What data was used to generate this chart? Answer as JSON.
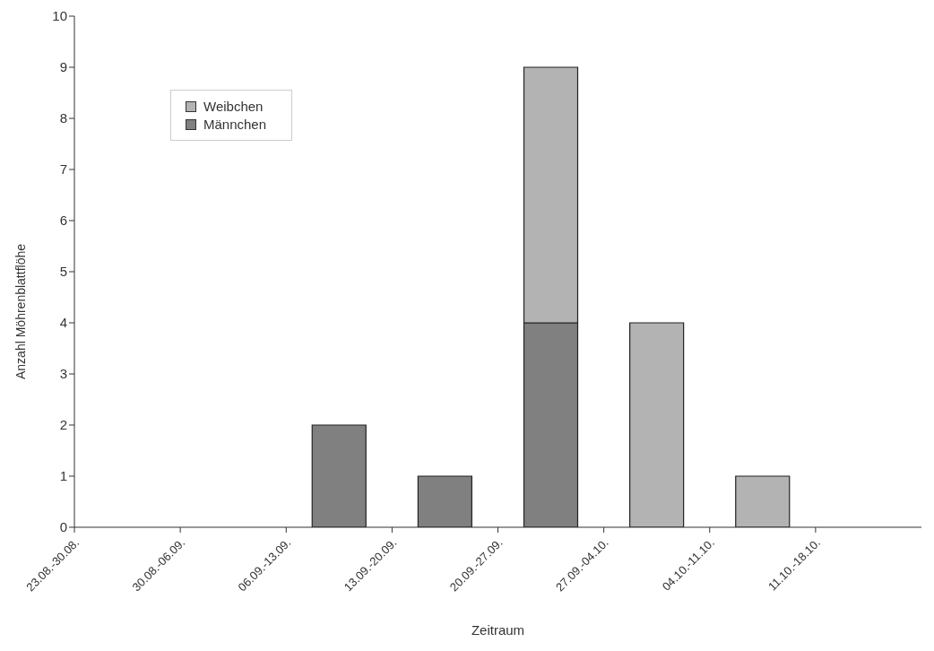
{
  "chart_data": {
    "type": "bar",
    "stacked": true,
    "xlabel": "Zeitraum",
    "ylabel": "Anzahl Möhrenblattflöhe",
    "categories": [
      "23.08.-30.08.",
      "30.08.-06.09.",
      "06.09.-13.09.",
      "13.09.-20.09.",
      "20.09.-27.09.",
      "27.09.-04.10.",
      "04.10.-11.10.",
      "11.10.-18.10."
    ],
    "series": [
      {
        "name": "Männchen",
        "color": "#808080",
        "values": [
          0,
          0,
          2,
          1,
          4,
          0,
          0,
          0
        ]
      },
      {
        "name": "Weibchen",
        "color": "#b3b3b3",
        "values": [
          0,
          0,
          0,
          0,
          5,
          4,
          1,
          0
        ]
      }
    ],
    "ylim": [
      0,
      10
    ],
    "yticks": [
      0,
      1,
      2,
      3,
      4,
      5,
      6,
      7,
      8,
      9,
      10
    ],
    "grid": false,
    "legend": "top left"
  }
}
